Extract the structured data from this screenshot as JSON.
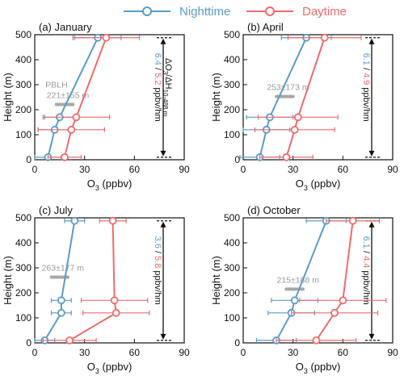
{
  "legend": {
    "night_label": "Nighttime",
    "day_label": "Daytime"
  },
  "colors": {
    "night": "#5b9bc6",
    "day": "#ef6b6b",
    "pblh": "#a8a8a8",
    "axis": "#111111"
  },
  "chart_data": [
    {
      "type": "line",
      "title": "(a) January",
      "xlabel": "O3 (ppbv)",
      "ylabel": "Height (m)",
      "xlim": [
        0,
        90
      ],
      "ylim": [
        0,
        500
      ],
      "xticks": [
        0,
        30,
        60,
        90
      ],
      "yticks": [
        0,
        100,
        200,
        300,
        400,
        500
      ],
      "pblh_label": "PBLH",
      "pblh_value": "221±155 m",
      "pblh_height": 221,
      "pblh_x_range": [
        13,
        23
      ],
      "gradient_night": "6.4",
      "gradient_day": "5.2",
      "gradient_sep": " / ",
      "gradient_label": "ΔO3/ΔH",
      "gradient_subscript": "10-488 m",
      "gradient_unit": " ppbv/hm",
      "span_heights": [
        10,
        488
      ],
      "series": [
        {
          "name": "Nighttime",
          "heights": [
            10,
            120,
            170,
            488
          ],
          "values": [
            8,
            12,
            15,
            38
          ],
          "err": [
            8,
            10,
            9,
            14
          ]
        },
        {
          "name": "Daytime",
          "heights": [
            10,
            120,
            170,
            488
          ],
          "values": [
            18,
            22,
            25,
            43
          ],
          "err": [
            10,
            20,
            20,
            20
          ]
        }
      ]
    },
    {
      "type": "line",
      "title": "(b) April",
      "xlabel": "O3 (ppbv)",
      "ylabel": "Height (m)",
      "xlim": [
        0,
        90
      ],
      "ylim": [
        0,
        500
      ],
      "xticks": [
        0,
        30,
        60,
        90
      ],
      "yticks": [
        0,
        100,
        200,
        300,
        400,
        500
      ],
      "pblh_label": "",
      "pblh_value": "253±173 m",
      "pblh_height": 253,
      "pblh_x_range": [
        20,
        30
      ],
      "gradient_night": "6.1",
      "gradient_day": "4.9",
      "gradient_sep": " / ",
      "gradient_label": "",
      "gradient_subscript": "",
      "gradient_unit": " ppbv/hm",
      "span_heights": [
        10,
        488
      ],
      "series": [
        {
          "name": "Nighttime",
          "heights": [
            10,
            120,
            170,
            488
          ],
          "values": [
            10,
            14,
            16,
            38
          ],
          "err": [
            12,
            14,
            14,
            15
          ]
        },
        {
          "name": "Daytime",
          "heights": [
            10,
            120,
            170,
            488
          ],
          "values": [
            26,
            31,
            33,
            49
          ],
          "err": [
            16,
            24,
            24,
            22
          ]
        }
      ]
    },
    {
      "type": "line",
      "title": "(c) July",
      "xlabel": "O3 (ppbv)",
      "ylabel": "Height (m)",
      "xlim": [
        0,
        90
      ],
      "ylim": [
        0,
        500
      ],
      "xticks": [
        0,
        30,
        60,
        90
      ],
      "yticks": [
        0,
        100,
        200,
        300,
        400,
        500
      ],
      "pblh_label": "",
      "pblh_value": "263±177 m",
      "pblh_height": 263,
      "pblh_x_range": [
        10,
        20
      ],
      "gradient_night": "3.6",
      "gradient_day": "5.8",
      "gradient_sep": " / ",
      "gradient_label": "",
      "gradient_subscript": "",
      "gradient_unit": " ppbv/hm",
      "span_heights": [
        10,
        488
      ],
      "series": [
        {
          "name": "Nighttime",
          "heights": [
            10,
            120,
            170,
            488
          ],
          "values": [
            6,
            16,
            16,
            24
          ],
          "err": [
            6,
            6,
            6,
            6
          ]
        },
        {
          "name": "Daytime",
          "heights": [
            10,
            120,
            170,
            488
          ],
          "values": [
            21,
            49,
            48,
            47
          ],
          "err": [
            16,
            20,
            20,
            8
          ]
        }
      ]
    },
    {
      "type": "line",
      "title": "(d) October",
      "xlabel": "O3 (ppbv)",
      "ylabel": "Height (m)",
      "xlim": [
        0,
        90
      ],
      "ylim": [
        0,
        500
      ],
      "xticks": [
        0,
        30,
        60,
        90
      ],
      "yticks": [
        0,
        100,
        200,
        300,
        400,
        500
      ],
      "pblh_label": "",
      "pblh_value": "215±188 m",
      "pblh_height": 215,
      "pblh_x_range": [
        26,
        36
      ],
      "gradient_night": "6.1",
      "gradient_day": "4.4",
      "gradient_sep": " / ",
      "gradient_label": "",
      "gradient_subscript": "",
      "gradient_unit": " ppbv/hm",
      "span_heights": [
        10,
        488
      ],
      "series": [
        {
          "name": "Nighttime",
          "heights": [
            10,
            120,
            170,
            488
          ],
          "values": [
            20,
            29,
            31,
            50
          ],
          "err": [
            12,
            14,
            14,
            12
          ]
        },
        {
          "name": "Daytime",
          "heights": [
            10,
            120,
            170,
            488
          ],
          "values": [
            44,
            55,
            60,
            66
          ],
          "err": [
            24,
            26,
            26,
            16
          ]
        }
      ]
    }
  ]
}
